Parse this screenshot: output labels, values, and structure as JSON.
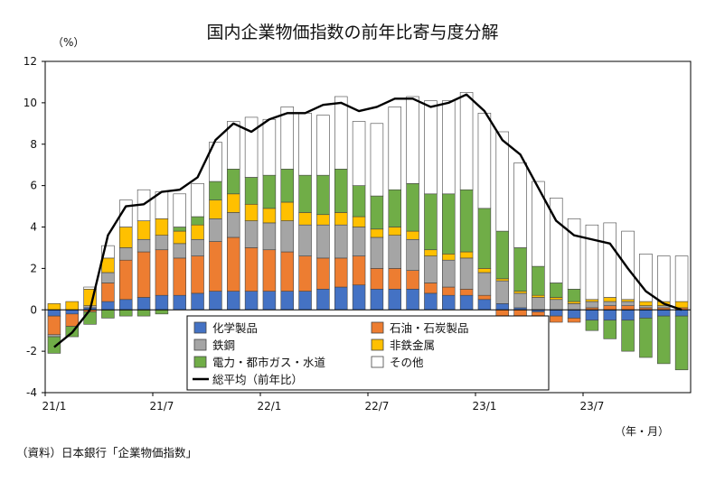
{
  "chart_data": {
    "type": "bar",
    "title": "国内企業物価指数の前年比寄与度分解",
    "ylabel": "（%）",
    "xlabel": "（年・月）",
    "source": "（資料）日本銀行「企業物価指数」",
    "ylim": [
      -4,
      12
    ],
    "yticks": [
      -4,
      -2,
      0,
      2,
      4,
      6,
      8,
      10,
      12
    ],
    "grid": false,
    "legend_position": "bottom-center",
    "categories": [
      "21/1",
      "21/2",
      "21/3",
      "21/4",
      "21/5",
      "21/6",
      "21/7",
      "21/8",
      "21/9",
      "21/10",
      "21/11",
      "21/12",
      "22/1",
      "22/2",
      "22/3",
      "22/4",
      "22/5",
      "22/6",
      "22/7",
      "22/8",
      "22/9",
      "22/10",
      "22/11",
      "22/12",
      "23/1",
      "23/2",
      "23/3",
      "23/4",
      "23/5",
      "23/6",
      "23/7",
      "23/8",
      "23/9",
      "23/10",
      "23/11",
      "23/12"
    ],
    "xtick_labels": [
      "21/1",
      "21/7",
      "22/1",
      "22/7",
      "23/1",
      "23/7"
    ],
    "xtick_indices": [
      0,
      6,
      12,
      18,
      24,
      30
    ],
    "series": [
      {
        "name": "化学製品",
        "kind": "bar",
        "color": "#4472c4",
        "values": [
          -0.3,
          -0.2,
          0.1,
          0.4,
          0.5,
          0.6,
          0.7,
          0.7,
          0.8,
          0.9,
          0.9,
          0.9,
          0.9,
          0.9,
          0.9,
          1.0,
          1.1,
          1.2,
          1.0,
          1.0,
          1.0,
          0.8,
          0.7,
          0.7,
          0.5,
          0.3,
          0.1,
          -0.1,
          -0.3,
          -0.4,
          -0.5,
          -0.5,
          -0.5,
          -0.4,
          -0.3,
          -0.3
        ]
      },
      {
        "name": "石油・石炭製品",
        "kind": "bar",
        "color": "#ed7d31",
        "values": [
          -0.9,
          -0.6,
          -0.1,
          0.9,
          1.9,
          2.2,
          2.2,
          1.8,
          1.8,
          2.4,
          2.6,
          2.1,
          2.0,
          1.9,
          1.7,
          1.5,
          1.4,
          1.4,
          1.0,
          1.0,
          0.9,
          0.5,
          0.4,
          0.3,
          0.2,
          -0.3,
          -0.4,
          -0.2,
          -0.3,
          -0.2,
          0.1,
          0.2,
          0.2,
          0.1,
          0.1,
          0.1
        ]
      },
      {
        "name": "鉄鋼",
        "kind": "bar",
        "color": "#a5a5a5",
        "values": [
          -0.1,
          0.0,
          0.1,
          0.5,
          0.6,
          0.6,
          0.7,
          0.7,
          0.8,
          1.1,
          1.2,
          1.3,
          1.3,
          1.5,
          1.5,
          1.6,
          1.6,
          1.4,
          1.5,
          1.6,
          1.5,
          1.3,
          1.3,
          1.5,
          1.1,
          1.1,
          0.7,
          0.6,
          0.5,
          0.3,
          0.3,
          0.2,
          0.2,
          0.1,
          0.1,
          0.0
        ]
      },
      {
        "name": "非鉄金属",
        "kind": "bar",
        "color": "#ffc000",
        "values": [
          0.3,
          0.4,
          0.8,
          0.7,
          1.0,
          0.9,
          0.8,
          0.6,
          0.7,
          0.9,
          0.9,
          0.8,
          0.7,
          0.9,
          0.6,
          0.5,
          0.6,
          0.5,
          0.4,
          0.4,
          0.4,
          0.3,
          0.3,
          0.3,
          0.2,
          0.1,
          0.1,
          0.1,
          0.1,
          0.1,
          0.1,
          0.2,
          0.1,
          0.2,
          0.2,
          0.3
        ]
      },
      {
        "name": "電力・都市ガス・水道",
        "kind": "bar",
        "color": "#70ad47",
        "values": [
          -0.8,
          -0.5,
          -0.6,
          -0.4,
          -0.3,
          -0.3,
          -0.2,
          0.2,
          0.4,
          0.9,
          1.2,
          1.3,
          1.6,
          1.6,
          1.8,
          1.9,
          2.1,
          1.5,
          1.6,
          1.8,
          2.3,
          2.7,
          2.9,
          3.0,
          2.9,
          2.3,
          2.1,
          1.4,
          0.7,
          0.6,
          -0.5,
          -0.9,
          -1.5,
          -1.9,
          -2.3,
          -2.6
        ]
      },
      {
        "name": "その他",
        "kind": "bar",
        "color": "#ffffff",
        "values": [
          0.0,
          0.0,
          0.1,
          0.6,
          1.3,
          1.5,
          1.3,
          1.6,
          1.6,
          1.9,
          2.3,
          2.9,
          2.7,
          3.0,
          3.0,
          2.9,
          3.5,
          3.1,
          3.5,
          4.0,
          4.2,
          4.5,
          4.5,
          4.7,
          4.6,
          4.8,
          4.1,
          4.1,
          4.1,
          3.4,
          3.6,
          3.6,
          3.3,
          2.3,
          2.2,
          2.2
        ]
      },
      {
        "name": "総平均（前年比）",
        "kind": "line",
        "color": "#000000",
        "values": [
          -1.8,
          -1.1,
          0.0,
          3.6,
          5.0,
          5.1,
          5.7,
          5.8,
          6.4,
          8.2,
          9.0,
          8.6,
          9.2,
          9.5,
          9.5,
          9.9,
          10.0,
          9.6,
          9.8,
          10.2,
          10.2,
          9.8,
          10.0,
          10.4,
          9.6,
          8.2,
          7.5,
          5.9,
          4.3,
          3.6,
          3.4,
          3.2,
          2.0,
          0.9,
          0.3,
          0.0
        ]
      }
    ]
  }
}
